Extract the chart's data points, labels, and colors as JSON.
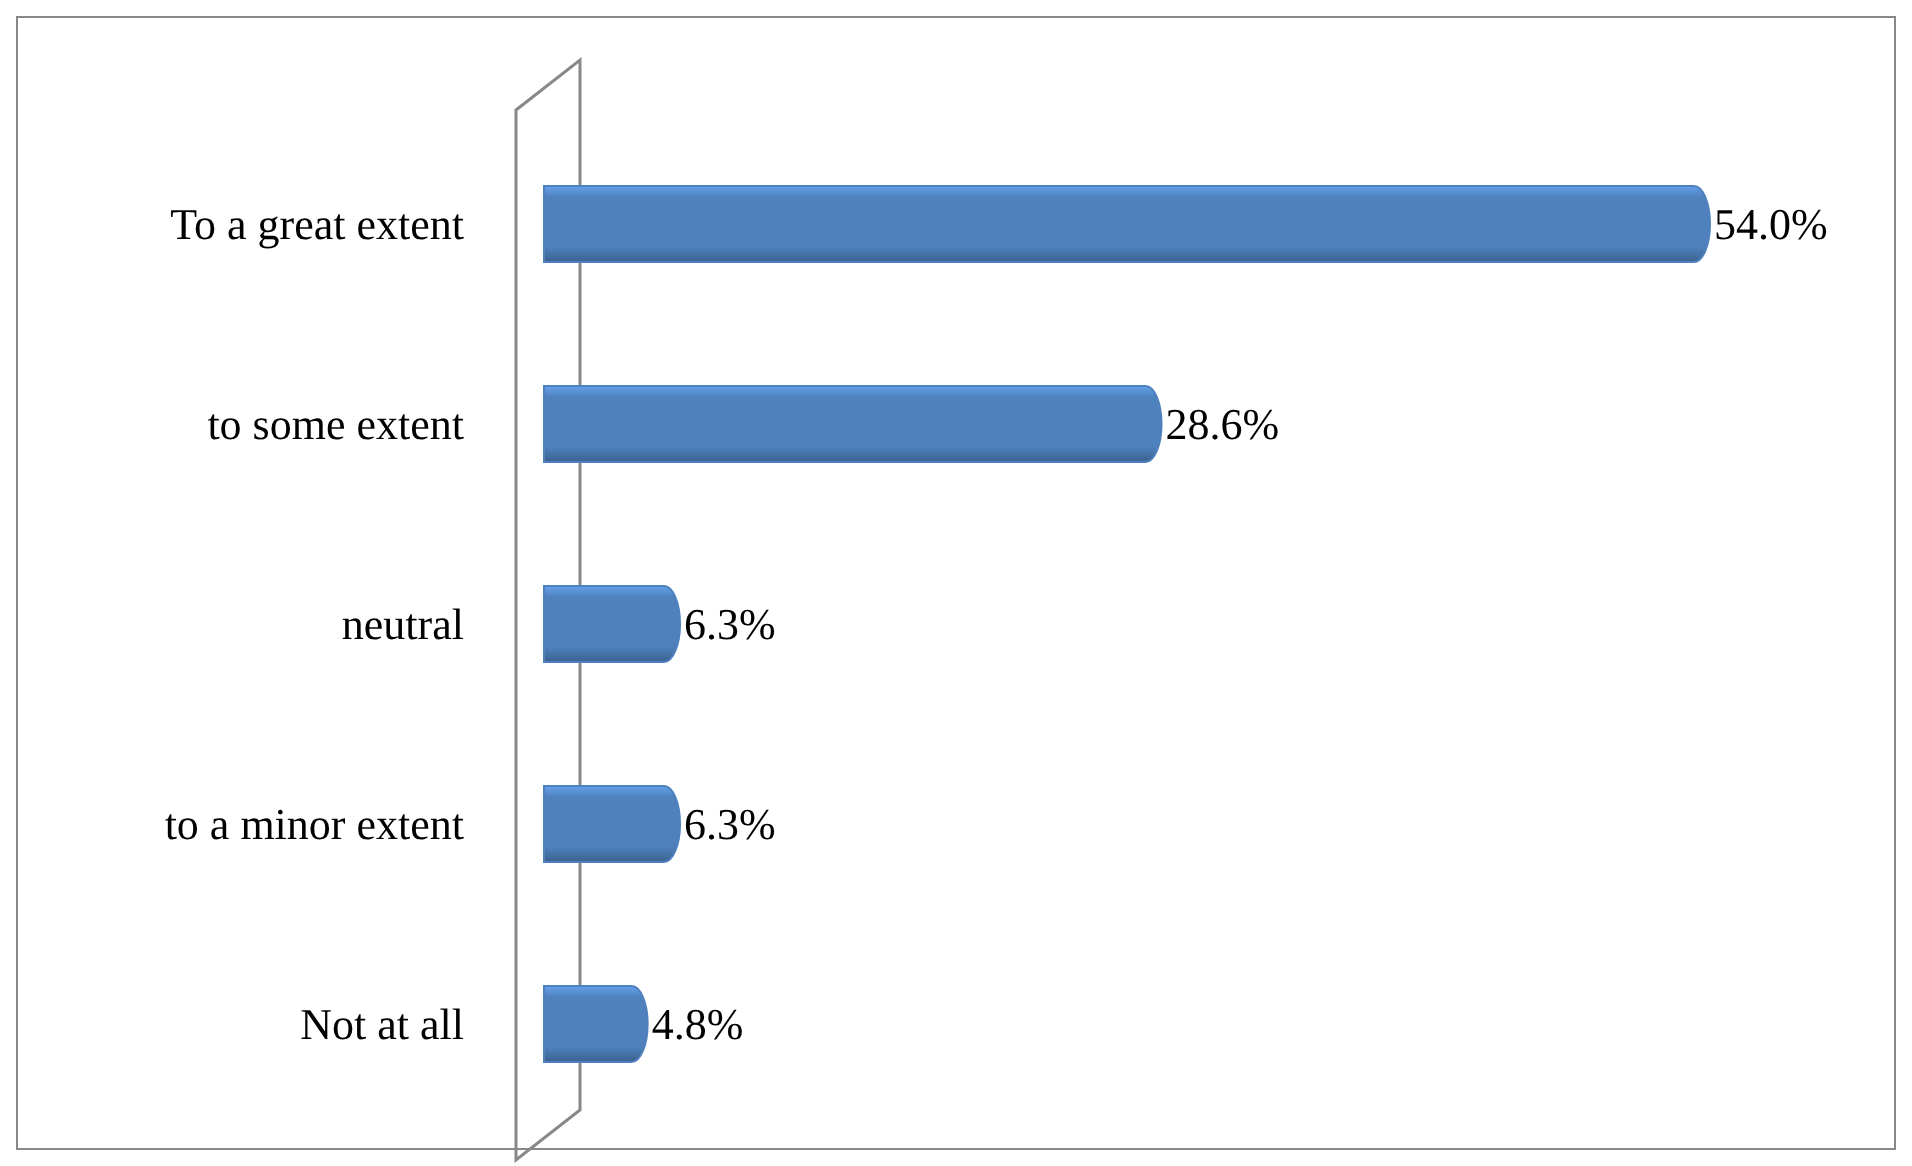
{
  "chart_data": {
    "type": "bar",
    "orientation": "horizontal",
    "categories": [
      "To a great extent",
      "to some extent",
      "neutral",
      "to a minor extent",
      "Not at all"
    ],
    "values": [
      54.0,
      28.6,
      6.3,
      6.3,
      4.8
    ],
    "value_labels": [
      "54.0%",
      "28.6%",
      "6.3%",
      "6.3%",
      "4.8%"
    ],
    "color": "#4f81bd"
  }
}
